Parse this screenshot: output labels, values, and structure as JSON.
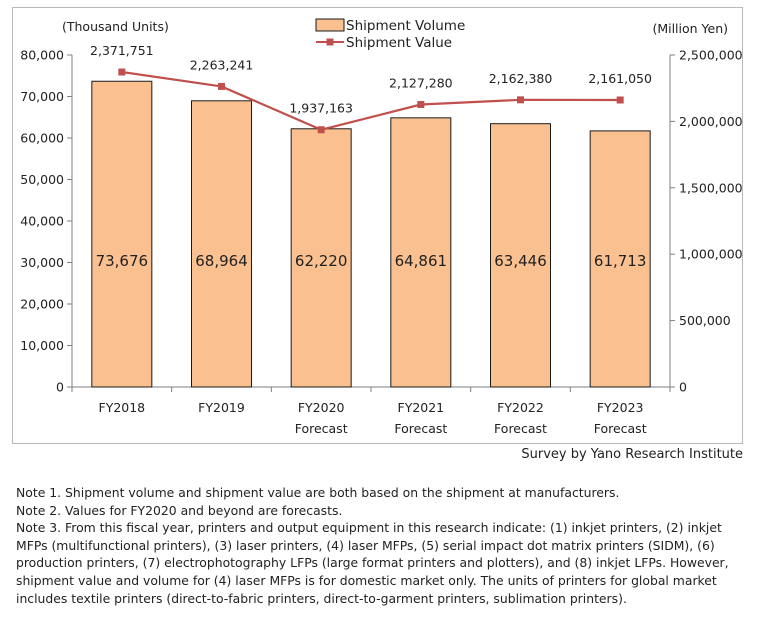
{
  "chart_data": {
    "type": "bar+line",
    "categories": [
      [
        "FY2018"
      ],
      [
        "FY2019"
      ],
      [
        "FY2020",
        "Forecast"
      ],
      [
        "FY2021",
        "Forecast"
      ],
      [
        "FY2022",
        "Forecast"
      ],
      [
        "FY2023",
        "Forecast"
      ]
    ],
    "series": [
      {
        "name": "Shipment Volume",
        "kind": "bar",
        "axis": "left",
        "values": [
          73676,
          68964,
          62220,
          64861,
          63446,
          61713
        ],
        "labels": [
          "73,676",
          "68,964",
          "62,220",
          "64,861",
          "63,446",
          "61,713"
        ]
      },
      {
        "name": "Shipment Value",
        "kind": "line",
        "axis": "right",
        "values": [
          2371751,
          2263241,
          1937163,
          2127280,
          2162380,
          2161050
        ],
        "labels": [
          "2,371,751",
          "2,263,241",
          "1,937,163",
          "2,127,280",
          "2,162,380",
          "2,161,050"
        ]
      }
    ],
    "left_axis": {
      "label": "(Thousand Units)",
      "min": 0,
      "max": 80000,
      "ticks": [
        "0",
        "10,000",
        "20,000",
        "30,000",
        "40,000",
        "50,000",
        "60,000",
        "70,000",
        "80,000"
      ]
    },
    "right_axis": {
      "label": "(Million Yen)",
      "min": 0,
      "max": 2500000,
      "ticks": [
        "0",
        "500,000",
        "1,000,000",
        "1,500,000",
        "2,000,000",
        "2,500,000"
      ]
    },
    "legend": [
      "Shipment Volume",
      "Shipment Value"
    ],
    "legend_position": "top-center",
    "grid": false
  },
  "colors": {
    "bar_fill": "#FAC090",
    "bar_stroke": "#1a1a1a",
    "line": "#C0504D",
    "axis": "#7f7f7f"
  },
  "source": "Survey by Yano Research Institute",
  "notes": [
    "Note 1.  Shipment volume and shipment value are both based on the shipment at manufacturers.",
    "Note 2.  Values for FY2020 and beyond are forecasts.",
    "Note 3.  From this fiscal year, printers and output equipment in this research indicate: (1) inkjet printers, (2) inkjet MFPs (multifunctional printers), (3) laser printers, (4) laser MFPs, (5) serial impact dot matrix printers (SIDM), (6) production printers, (7) electrophotography LFPs (large format printers and plotters), and (8) inkjet LFPs.  However, shipment value and volume for (4) laser MFPs is for domestic market only.  The units of printers for global market includes textile printers (direct-to-fabric printers, direct-to-garment printers, sublimation printers)."
  ]
}
